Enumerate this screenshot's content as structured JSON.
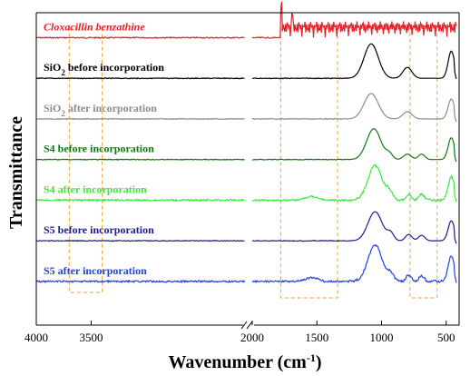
{
  "chart_data": {
    "type": "line",
    "title": "",
    "xlabel": "Wavenumber (cm",
    "xlabel_sup": "-1",
    "xlabel_close": ")",
    "ylabel": "Transmittance",
    "x_axis": {
      "reversed": true,
      "broken": true,
      "break_between": [
        2000,
        2100
      ],
      "left_segment": {
        "range": [
          4000,
          2100
        ]
      },
      "right_segment": {
        "range": [
          2000,
          400
        ]
      },
      "tick_values": [
        4000,
        3500,
        2000,
        1500,
        1000,
        500
      ],
      "tick_labels": [
        "4000",
        "3500",
        "2000",
        "1500",
        "1000",
        "500"
      ]
    },
    "y_ticks": false,
    "grid": false,
    "legend": "none",
    "highlight_ranges": [
      {
        "from": 3700,
        "to": 3400,
        "color": "#f0a030"
      },
      {
        "from": 1780,
        "to": 1340,
        "color": "#f0a030"
      },
      {
        "from": 780,
        "to": 570,
        "color": "#f0a030"
      }
    ],
    "series": [
      {
        "name": "Cloxacillin benzathine",
        "italic": true,
        "color": "#e8202a",
        "baseline": 0.92,
        "profile": "drug"
      },
      {
        "name": "SiO",
        "sub": "2",
        "name_tail": " before incorporation",
        "color": "#000000",
        "baseline": 0.79,
        "profile": "silica"
      },
      {
        "name": "SiO",
        "sub": "2",
        "name_tail": " after incorporation",
        "color": "#8c8c8c",
        "baseline": 0.66,
        "profile": "silica_small"
      },
      {
        "name": "S4 before incorporation",
        "color": "#127a12",
        "baseline": 0.53,
        "profile": "s4"
      },
      {
        "name": "S4 after incorporation",
        "color": "#3ee83e",
        "baseline": 0.4,
        "profile": "s4_after"
      },
      {
        "name": "S5 before incorporation",
        "color": "#1c1c8c",
        "baseline": 0.27,
        "profile": "s5"
      },
      {
        "name": "S5 after incorporation",
        "color": "#2040e8",
        "baseline": 0.14,
        "profile": "s5_after"
      }
    ]
  }
}
